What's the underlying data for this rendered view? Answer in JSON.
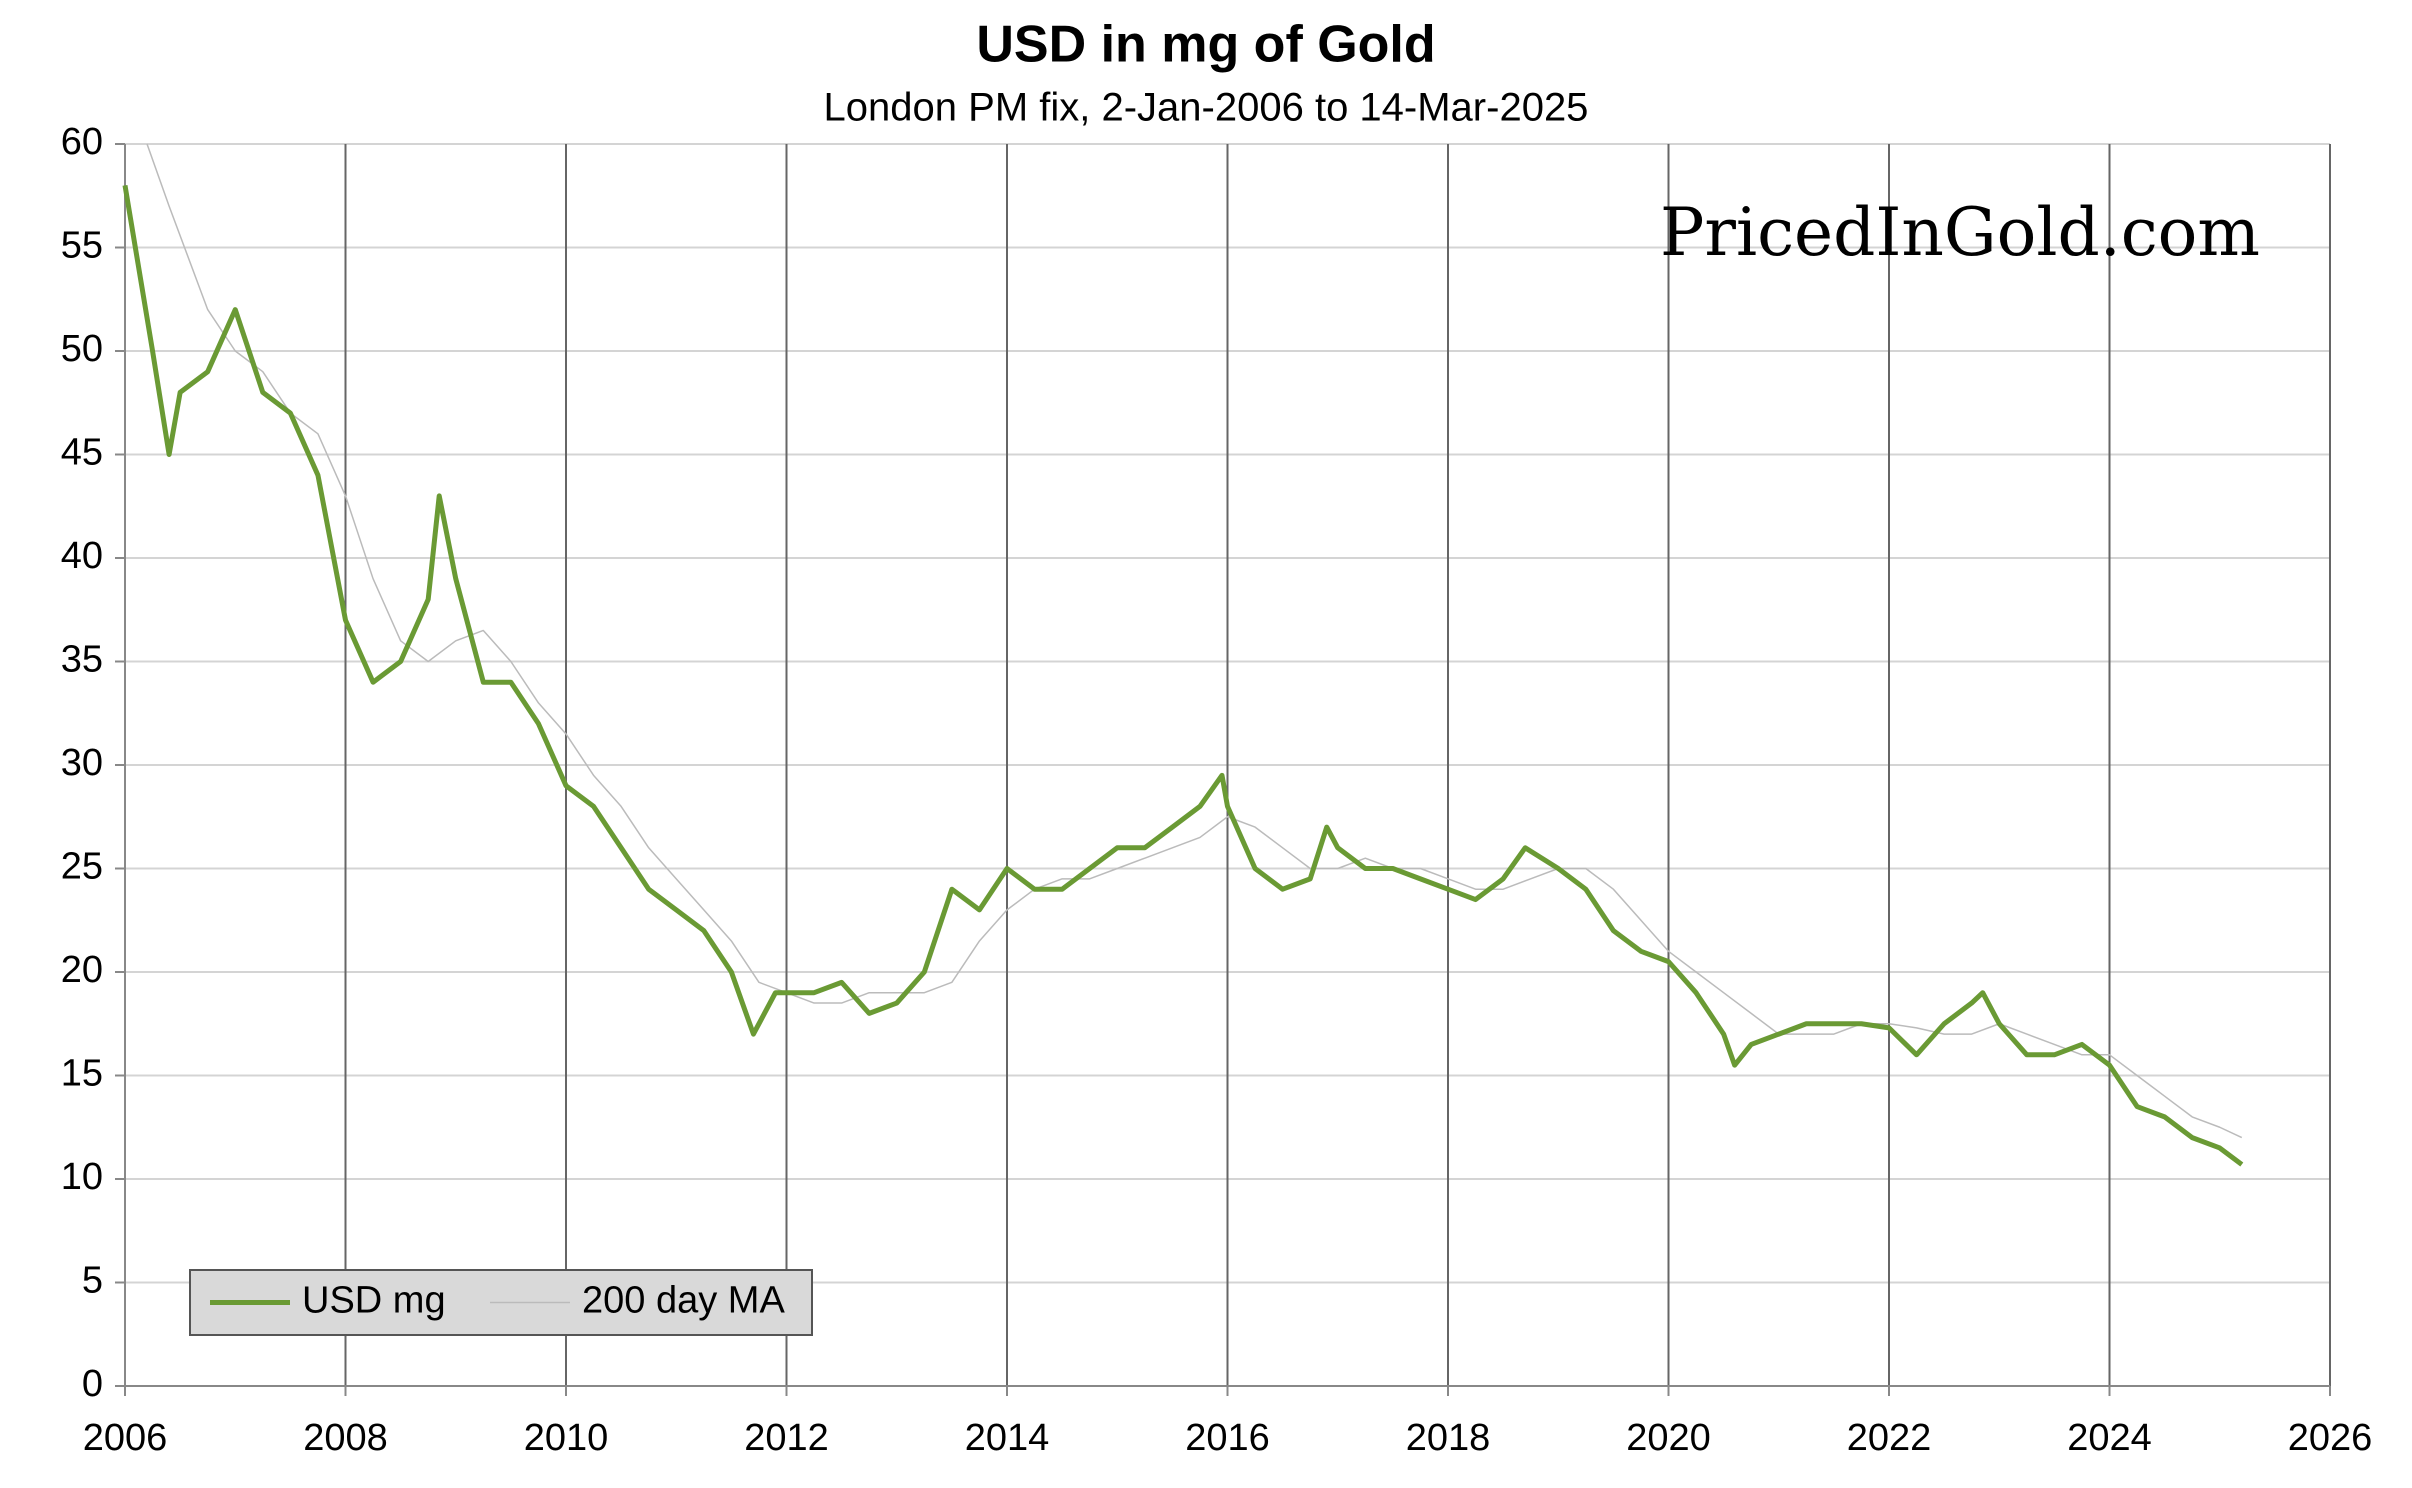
{
  "chart_data": {
    "type": "line",
    "title": "USD in mg of Gold",
    "subtitle": "London PM fix, 2-Jan-2006 to 14-Mar-2025",
    "annotation": "PricedInGold.com",
    "xlim": [
      2006,
      2026
    ],
    "xticks": [
      2006,
      2008,
      2010,
      2012,
      2014,
      2016,
      2018,
      2020,
      2022,
      2024,
      2026
    ],
    "ylim": [
      0,
      60
    ],
    "yticks": [
      0,
      5,
      10,
      15,
      20,
      25,
      30,
      35,
      40,
      45,
      50,
      55,
      60
    ],
    "grid": true,
    "legend": "bottom-left",
    "series": [
      {
        "name": "USD mg",
        "color": "#6a9a34",
        "x": [
          2006.0,
          2006.25,
          2006.4,
          2006.5,
          2006.75,
          2007.0,
          2007.25,
          2007.5,
          2007.75,
          2008.0,
          2008.25,
          2008.5,
          2008.75,
          2008.85,
          2009.0,
          2009.25,
          2009.5,
          2009.75,
          2010.0,
          2010.25,
          2010.5,
          2010.75,
          2011.0,
          2011.25,
          2011.5,
          2011.7,
          2011.9,
          2012.0,
          2012.25,
          2012.5,
          2012.75,
          2013.0,
          2013.25,
          2013.5,
          2013.75,
          2014.0,
          2014.25,
          2014.5,
          2014.75,
          2015.0,
          2015.25,
          2015.5,
          2015.75,
          2015.95,
          2016.0,
          2016.25,
          2016.5,
          2016.75,
          2016.9,
          2017.0,
          2017.25,
          2017.5,
          2017.75,
          2018.0,
          2018.25,
          2018.5,
          2018.7,
          2019.0,
          2019.25,
          2019.5,
          2019.75,
          2020.0,
          2020.25,
          2020.5,
          2020.6,
          2020.75,
          2021.0,
          2021.25,
          2021.5,
          2021.75,
          2022.0,
          2022.25,
          2022.5,
          2022.75,
          2022.85,
          2023.0,
          2023.25,
          2023.5,
          2023.75,
          2024.0,
          2024.25,
          2024.5,
          2024.75,
          2025.0,
          2025.2
        ],
        "values": [
          58,
          50,
          45,
          48,
          49,
          52,
          48,
          47,
          44,
          37,
          34,
          35,
          38,
          43,
          39,
          34,
          34,
          32,
          29,
          28,
          26,
          24,
          23,
          22,
          20,
          17,
          19,
          19,
          19,
          19.5,
          18,
          18.5,
          20,
          24,
          23,
          25,
          24,
          24,
          25,
          26,
          26,
          27,
          28,
          29.5,
          28,
          25,
          24,
          24.5,
          27,
          26,
          25,
          25,
          24.5,
          24,
          23.5,
          24.5,
          26,
          25,
          24,
          22,
          21,
          20.5,
          19,
          17,
          15.5,
          16.5,
          17,
          17.5,
          17.5,
          17.5,
          17.3,
          16,
          17.5,
          18.5,
          19,
          17.5,
          16,
          16,
          16.5,
          15.5,
          13.5,
          13,
          12,
          11.5,
          10.7
        ]
      },
      {
        "name": "200 day MA",
        "color": "#bbbbbb",
        "x": [
          2006.2,
          2006.4,
          2006.75,
          2007.0,
          2007.25,
          2007.5,
          2007.75,
          2008.0,
          2008.25,
          2008.5,
          2008.75,
          2009.0,
          2009.25,
          2009.5,
          2009.75,
          2010.0,
          2010.25,
          2010.5,
          2010.75,
          2011.0,
          2011.25,
          2011.5,
          2011.75,
          2012.0,
          2012.25,
          2012.5,
          2012.75,
          2013.0,
          2013.25,
          2013.5,
          2013.75,
          2014.0,
          2014.25,
          2014.5,
          2014.75,
          2015.0,
          2015.25,
          2015.5,
          2015.75,
          2016.0,
          2016.25,
          2016.5,
          2016.75,
          2017.0,
          2017.25,
          2017.5,
          2017.75,
          2018.0,
          2018.25,
          2018.5,
          2018.75,
          2019.0,
          2019.25,
          2019.5,
          2019.75,
          2020.0,
          2020.25,
          2020.5,
          2020.75,
          2021.0,
          2021.25,
          2021.5,
          2021.75,
          2022.0,
          2022.25,
          2022.5,
          2022.75,
          2023.0,
          2023.25,
          2023.5,
          2023.75,
          2024.0,
          2024.25,
          2024.5,
          2024.75,
          2025.0,
          2025.2
        ],
        "values": [
          60,
          57,
          52,
          50,
          49,
          47,
          46,
          43,
          39,
          36,
          35,
          36,
          36.5,
          35,
          33,
          31.5,
          29.5,
          28,
          26,
          24.5,
          23,
          21.5,
          19.5,
          19,
          18.5,
          18.5,
          19,
          19,
          19,
          19.5,
          21.5,
          23,
          24,
          24.5,
          24.5,
          25,
          25.5,
          26,
          26.5,
          27.5,
          27,
          26,
          25,
          25,
          25.5,
          25,
          25,
          24.5,
          24,
          24,
          24.5,
          25,
          25,
          24,
          22.5,
          21,
          20,
          19,
          18,
          17,
          17,
          17,
          17.5,
          17.5,
          17.3,
          17,
          17,
          17.5,
          17,
          16.5,
          16,
          16,
          15,
          14,
          13,
          12.5,
          12
        ]
      }
    ]
  }
}
